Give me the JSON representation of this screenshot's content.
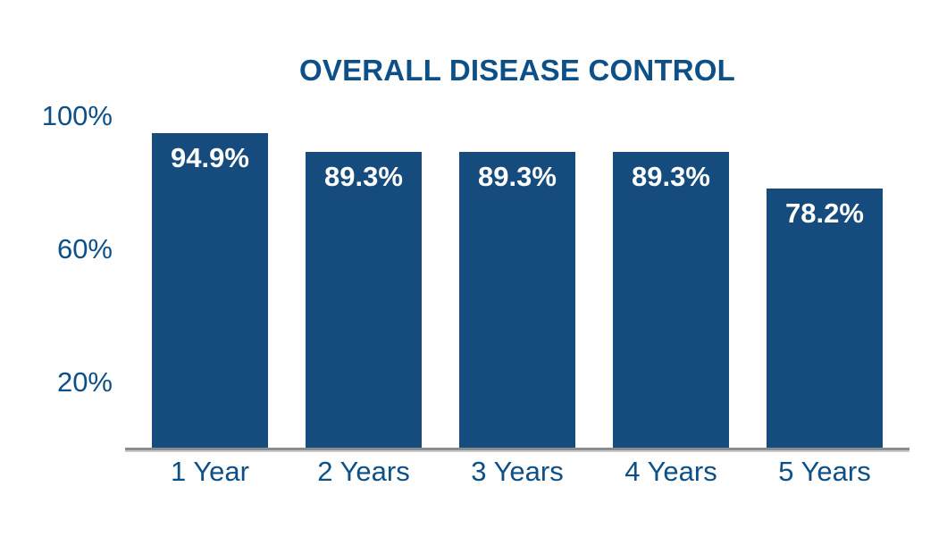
{
  "page": {
    "background": "#ffffff"
  },
  "chart_data": {
    "type": "bar",
    "title": "OVERALL DISEASE CONTROL",
    "categories": [
      "1 Year",
      "2 Years",
      "3 Years",
      "4 Years",
      "5 Years"
    ],
    "values": [
      94.9,
      89.3,
      89.3,
      89.3,
      78.2
    ],
    "value_labels": [
      "94.9%",
      "89.3%",
      "89.3%",
      "89.3%",
      "78.2%"
    ],
    "yticks": [
      {
        "value": 100,
        "label": "100%"
      },
      {
        "value": 60,
        "label": "60%"
      },
      {
        "value": 20,
        "label": "20%"
      }
    ],
    "ylim": [
      0,
      100
    ],
    "xlabel": "",
    "ylabel": "",
    "grid": false,
    "legend": null,
    "colors": {
      "bar": "#154b7d",
      "title_text": "#0d4f87",
      "axis_text": "#0d4f87",
      "value_text": "#ffffff",
      "axis_line": "#8a8d90"
    }
  }
}
